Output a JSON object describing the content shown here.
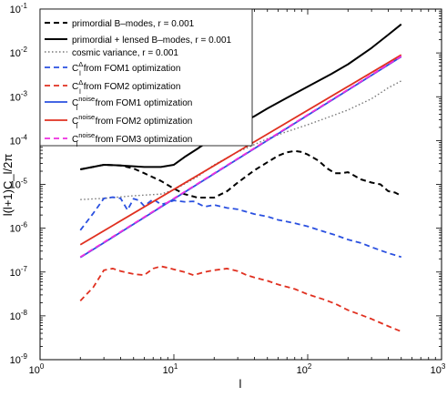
{
  "chart_data": {
    "type": "line",
    "xlabel": "l",
    "ylabel": "l(l+1)C_l/2π",
    "xscale": "log",
    "yscale": "log",
    "xlim": [
      1,
      1000
    ],
    "ylim": [
      1e-09,
      0.1
    ],
    "grid": false,
    "legend_position": "top-left",
    "x_ticks": [
      {
        "value": 1,
        "base": "10",
        "exp": "0"
      },
      {
        "value": 10,
        "base": "10",
        "exp": "1"
      },
      {
        "value": 100,
        "base": "10",
        "exp": "2"
      },
      {
        "value": 1000,
        "base": "10",
        "exp": "3"
      }
    ],
    "y_ticks": [
      {
        "value": 1e-09,
        "base": "10",
        "exp": "-9"
      },
      {
        "value": 1e-08,
        "base": "10",
        "exp": "-8"
      },
      {
        "value": 1e-07,
        "base": "10",
        "exp": "-7"
      },
      {
        "value": 1e-06,
        "base": "10",
        "exp": "-6"
      },
      {
        "value": 1e-05,
        "base": "10",
        "exp": "-5"
      },
      {
        "value": 0.0001,
        "base": "10",
        "exp": "-4"
      },
      {
        "value": 0.001,
        "base": "10",
        "exp": "-3"
      },
      {
        "value": 0.01,
        "base": "10",
        "exp": "-2"
      },
      {
        "value": 0.1,
        "base": "10",
        "exp": "-1"
      }
    ],
    "series": [
      {
        "name": "primordial B–modes, r = 0.001",
        "legend": {
          "pre": "primordial B–modes, r = 0.001",
          "sub": "",
          "sup": "",
          "post": ""
        },
        "color": "#000000",
        "style": "dashed",
        "width": 2,
        "points": [
          [
            2,
            2.2e-05
          ],
          [
            3,
            2.8e-05
          ],
          [
            4,
            2.7e-05
          ],
          [
            5,
            2.3e-05
          ],
          [
            6,
            1.8e-05
          ],
          [
            8,
            1.2e-05
          ],
          [
            10,
            8e-06
          ],
          [
            12,
            6e-06
          ],
          [
            15,
            5e-06
          ],
          [
            20,
            5e-06
          ],
          [
            25,
            7e-06
          ],
          [
            30,
            1.1e-05
          ],
          [
            40,
            2.1e-05
          ],
          [
            50,
            3.2e-05
          ],
          [
            60,
            4.5e-05
          ],
          [
            70,
            5.4e-05
          ],
          [
            80,
            5.8e-05
          ],
          [
            90,
            5.5e-05
          ],
          [
            100,
            4.8e-05
          ],
          [
            120,
            3.5e-05
          ],
          [
            140,
            2.3e-05
          ],
          [
            160,
            1.8e-05
          ],
          [
            180,
            1.8e-05
          ],
          [
            200,
            1.9e-05
          ],
          [
            250,
            1.3e-05
          ],
          [
            300,
            1.1e-05
          ],
          [
            350,
            1e-05
          ],
          [
            400,
            7e-06
          ],
          [
            450,
            6.5e-06
          ],
          [
            500,
            5.5e-06
          ]
        ]
      },
      {
        "name": "primordial + lensed B–modes, r = 0.001",
        "legend": {
          "pre": "primordial + lensed B–modes, r = 0.001",
          "sub": "",
          "sup": "",
          "post": ""
        },
        "color": "#000000",
        "style": "solid",
        "width": 2,
        "points": [
          [
            2,
            2.2e-05
          ],
          [
            3,
            2.8e-05
          ],
          [
            4,
            2.7e-05
          ],
          [
            6,
            2.5e-05
          ],
          [
            8,
            2.5e-05
          ],
          [
            10,
            2.8e-05
          ],
          [
            12,
            4.2e-05
          ],
          [
            15,
            6.5e-05
          ],
          [
            20,
            0.00012
          ],
          [
            30,
            0.00023
          ],
          [
            40,
            0.00036
          ],
          [
            50,
            0.00054
          ],
          [
            70,
            0.00095
          ],
          [
            100,
            0.0017
          ],
          [
            150,
            0.0033
          ],
          [
            200,
            0.0055
          ],
          [
            300,
            0.013
          ],
          [
            400,
            0.026
          ],
          [
            500,
            0.045
          ]
        ]
      },
      {
        "name": "cosmic variance, r = 0.001",
        "legend": {
          "pre": "cosmic variance, r = 0.001",
          "sub": "",
          "sup": "",
          "post": ""
        },
        "color": "#777777",
        "style": "dotted",
        "width": 1.4,
        "points": [
          [
            2,
            4.5e-06
          ],
          [
            3,
            4.8e-06
          ],
          [
            5,
            5.5e-06
          ],
          [
            8,
            6e-06
          ],
          [
            10,
            7.5e-06
          ],
          [
            15,
            1.5e-05
          ],
          [
            20,
            2.8e-05
          ],
          [
            30,
            5.5e-05
          ],
          [
            50,
            0.00011
          ],
          [
            70,
            0.00016
          ],
          [
            100,
            0.00023
          ],
          [
            150,
            0.00036
          ],
          [
            200,
            0.0005
          ],
          [
            300,
            0.0009
          ],
          [
            400,
            0.0016
          ],
          [
            500,
            0.0023
          ]
        ]
      },
      {
        "name": "C_l^Δ from FOM1 optimization",
        "legend": {
          "pre": "C",
          "sub": "l",
          "sup": "Δ",
          "post": " from FOM1 optimization"
        },
        "color": "#2a50e0",
        "style": "dashed",
        "width": 1.8,
        "points": [
          [
            2,
            9e-07
          ],
          [
            2.5,
            2.2e-06
          ],
          [
            3,
            4.8e-06
          ],
          [
            3.5,
            5.1e-06
          ],
          [
            4,
            4.8e-06
          ],
          [
            4.5,
            2.6e-06
          ],
          [
            5,
            4.7e-06
          ],
          [
            5.5,
            4.3e-06
          ],
          [
            6,
            3.2e-06
          ],
          [
            7,
            4.6e-06
          ],
          [
            8,
            3.5e-06
          ],
          [
            9,
            3.8e-06
          ],
          [
            10,
            4.3e-06
          ],
          [
            12,
            4e-06
          ],
          [
            14,
            4.1e-06
          ],
          [
            17,
            3.1e-06
          ],
          [
            20,
            3.4e-06
          ],
          [
            25,
            2.9e-06
          ],
          [
            30,
            2.7e-06
          ],
          [
            40,
            2.1e-06
          ],
          [
            50,
            1.85e-06
          ],
          [
            60,
            1.55e-06
          ],
          [
            80,
            1.3e-06
          ],
          [
            100,
            1.1e-06
          ],
          [
            130,
            8.5e-07
          ],
          [
            160,
            7e-07
          ],
          [
            200,
            5.5e-07
          ],
          [
            250,
            4.6e-07
          ],
          [
            300,
            3.7e-07
          ],
          [
            400,
            2.7e-07
          ],
          [
            500,
            2.2e-07
          ]
        ]
      },
      {
        "name": "C_l^Δ from FOM2 optimization",
        "legend": {
          "pre": "C",
          "sub": "l",
          "sup": "Δ",
          "post": " from FOM2 optimization"
        },
        "color": "#e03020",
        "style": "dashed",
        "width": 1.8,
        "points": [
          [
            2,
            2.2e-08
          ],
          [
            2.5,
            4.5e-08
          ],
          [
            3,
            1.1e-07
          ],
          [
            3.5,
            1.2e-07
          ],
          [
            4,
            1.05e-07
          ],
          [
            5,
            9e-08
          ],
          [
            6,
            8.5e-08
          ],
          [
            7,
            1.2e-07
          ],
          [
            8,
            1.35e-07
          ],
          [
            9,
            1.25e-07
          ],
          [
            10,
            1.15e-07
          ],
          [
            12,
            1e-07
          ],
          [
            14,
            8.5e-08
          ],
          [
            17,
            1e-07
          ],
          [
            20,
            1.1e-07
          ],
          [
            25,
            1.2e-07
          ],
          [
            30,
            1.05e-07
          ],
          [
            35,
            8.5e-08
          ],
          [
            40,
            7.5e-08
          ],
          [
            50,
            6.3e-08
          ],
          [
            60,
            5.2e-08
          ],
          [
            80,
            4.1e-08
          ],
          [
            100,
            3.1e-08
          ],
          [
            130,
            2.4e-08
          ],
          [
            160,
            1.9e-08
          ],
          [
            200,
            1.35e-08
          ],
          [
            250,
            1.05e-08
          ],
          [
            300,
            8.5e-09
          ],
          [
            400,
            5.8e-09
          ],
          [
            500,
            4.4e-09
          ]
        ]
      },
      {
        "name": "C_l^noise from FOM1 optimization",
        "legend": {
          "pre": "C",
          "sub": "l",
          "sup": "noise",
          "post": " from FOM1 optimization"
        },
        "color": "#2a50e0",
        "style": "solid",
        "width": 1.8,
        "points": [
          [
            2,
            2.15e-07
          ],
          [
            500,
            0.0082
          ]
        ]
      },
      {
        "name": "C_l^noise from FOM2 optimization",
        "legend": {
          "pre": "C",
          "sub": "l",
          "sup": "noise",
          "post": " from FOM2 optimization"
        },
        "color": "#e03020",
        "style": "solid",
        "width": 1.8,
        "points": [
          [
            2,
            4.2e-07
          ],
          [
            500,
            0.009
          ]
        ]
      },
      {
        "name": "C_l^noise from FOM3 optimization",
        "legend": {
          "pre": "C",
          "sub": "l",
          "sup": "noise",
          "post": " from FOM3 optimization"
        },
        "color": "#ee2ee0",
        "style": "dashed",
        "width": 1.8,
        "points": [
          [
            2,
            2.2e-07
          ],
          [
            500,
            0.0084
          ]
        ]
      }
    ]
  }
}
